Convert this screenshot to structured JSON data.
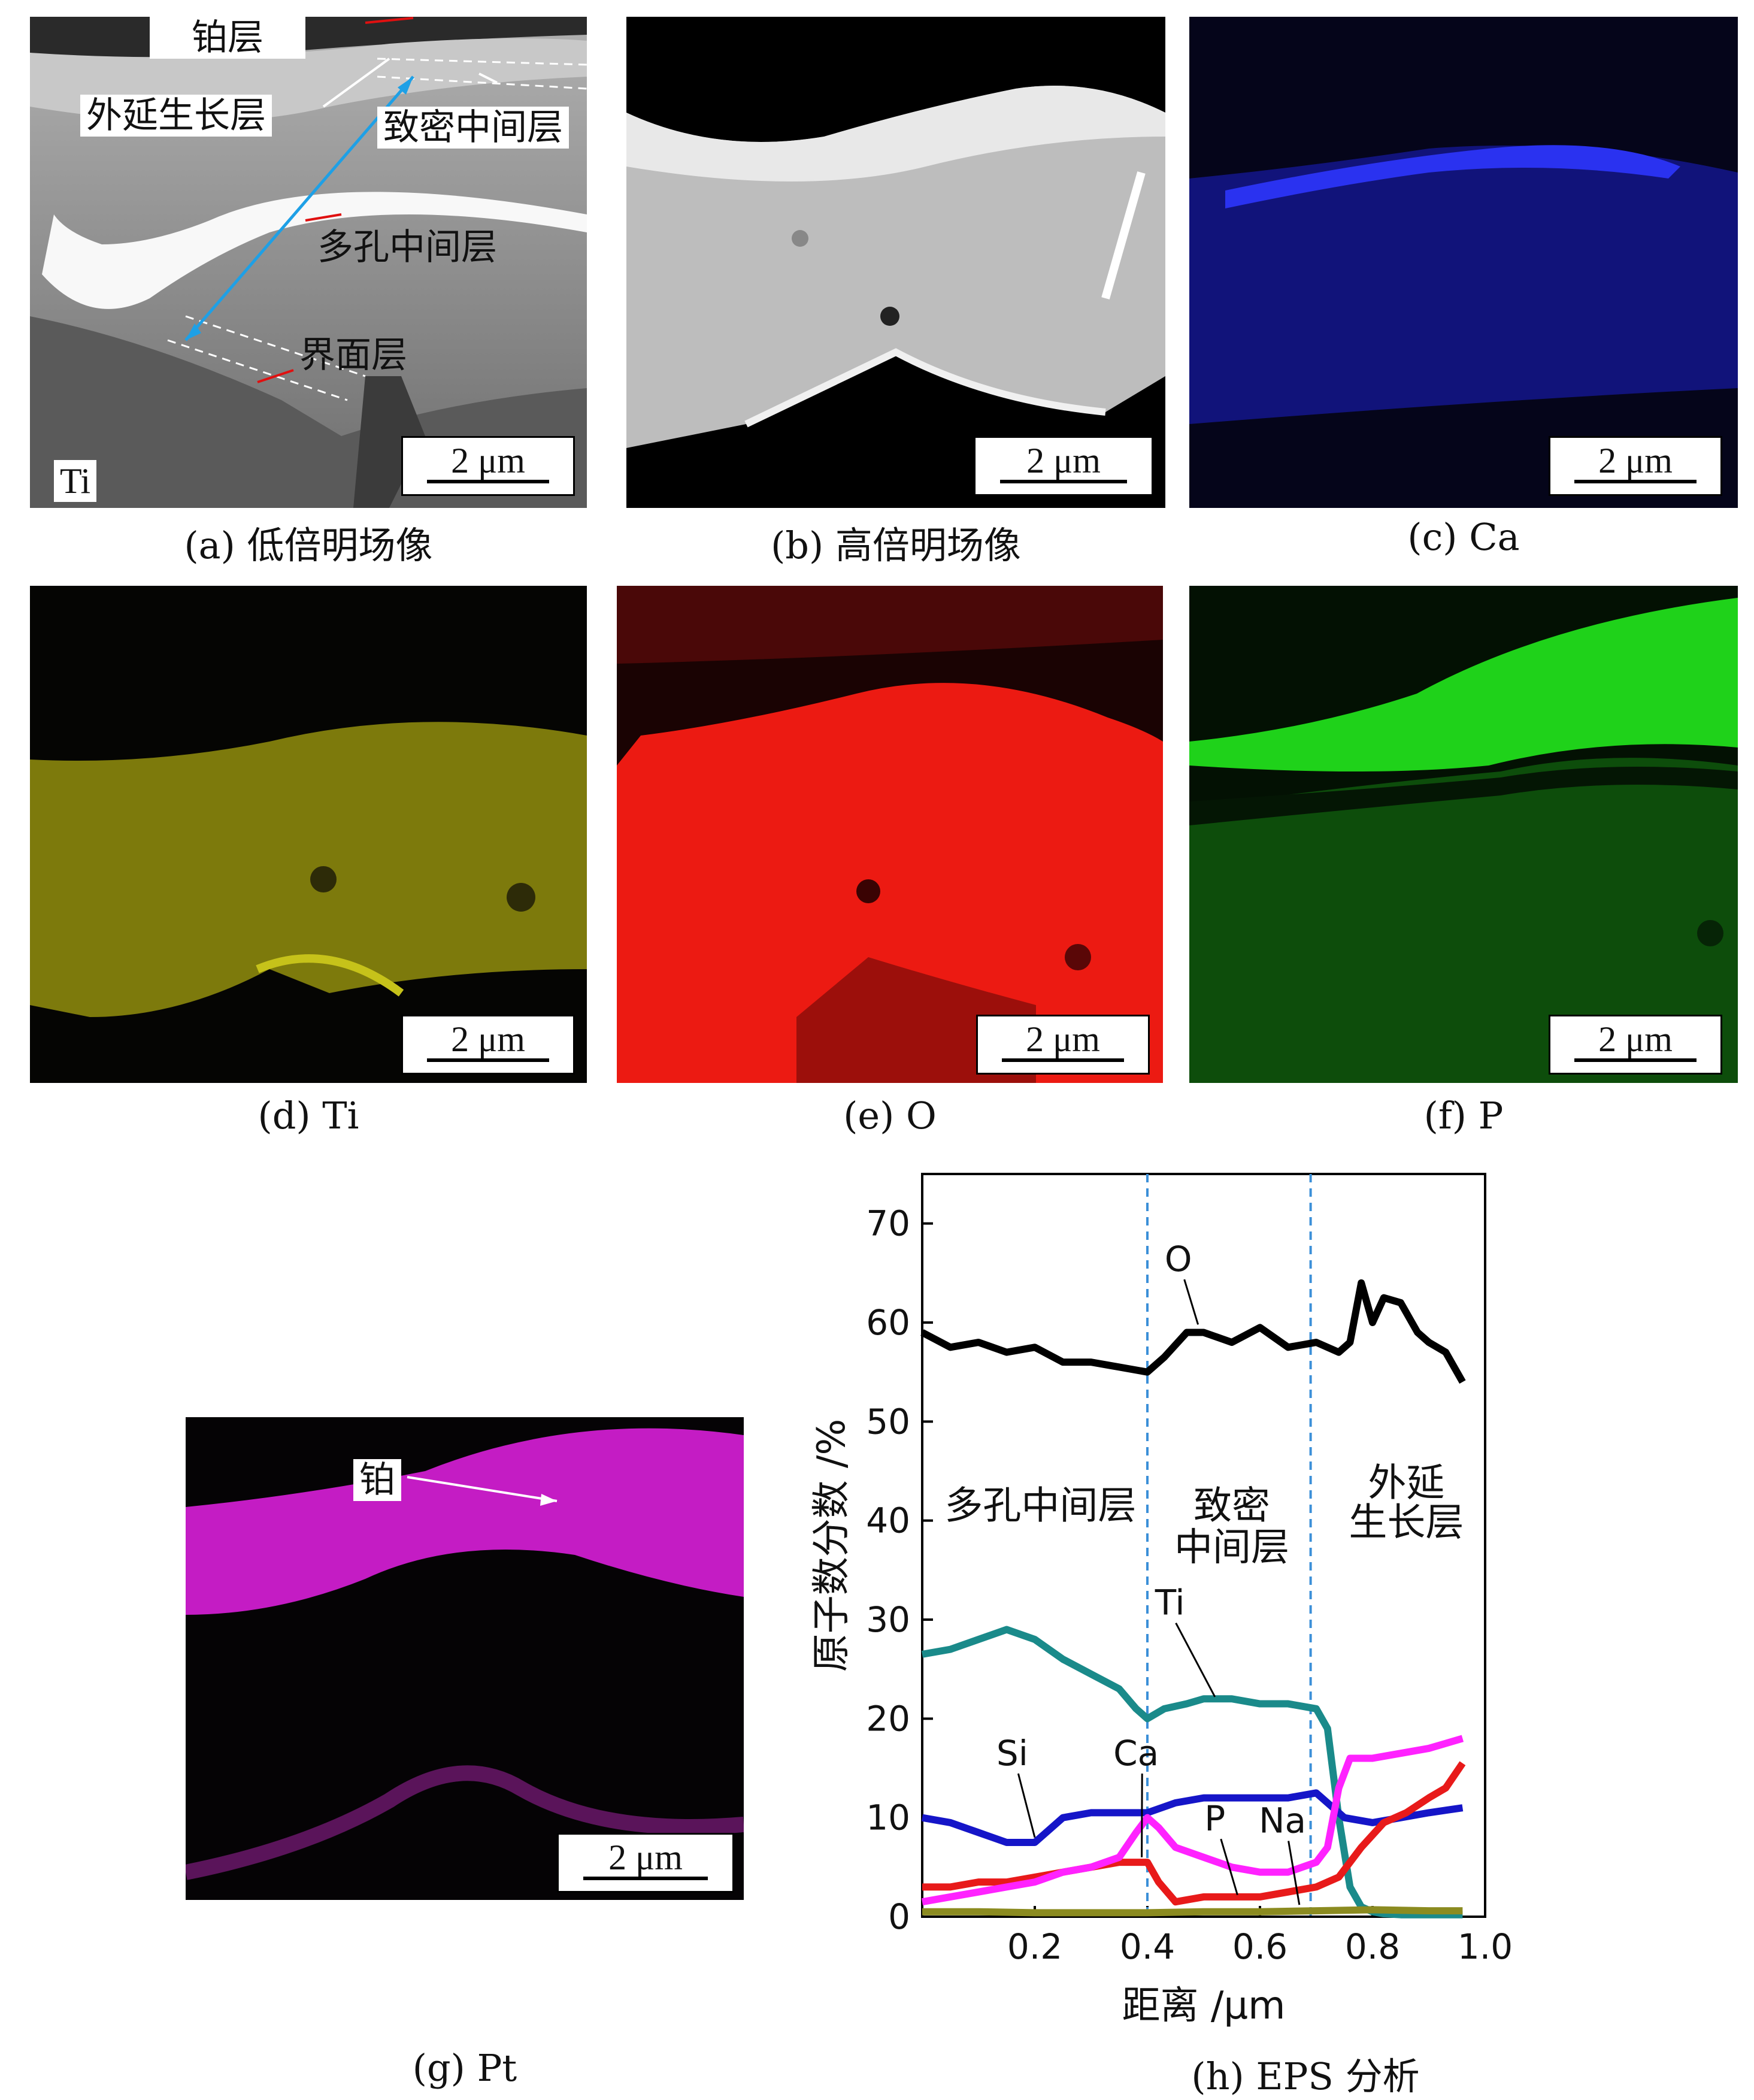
{
  "panels": {
    "a": {
      "caption": "(a) 低倍明场像",
      "scale_bar": "2 μm",
      "labels": {
        "pt_layer": "铂层",
        "epitaxial": "外延生长层",
        "dense": "致密中间层",
        "porous": "多孔中间层",
        "interface": "界面层",
        "ti": "Ti"
      }
    },
    "b": {
      "caption": "(b) 高倍明场像",
      "scale_bar": "2 μm"
    },
    "c": {
      "caption": "(c) Ca",
      "scale_bar": "2 μm",
      "color": "#1d2bd6"
    },
    "d": {
      "caption": "(d) Ti",
      "scale_bar": "2 μm",
      "color": "#b7b10e"
    },
    "e": {
      "caption": "(e) O",
      "scale_bar": "2 μm",
      "color": "#ff1b10"
    },
    "f": {
      "caption": "(f) P",
      "scale_bar": "2 μm",
      "color": "#22e01a"
    },
    "g": {
      "caption": "(g) Pt",
      "scale_bar": "2 μm",
      "color": "#d81fd8",
      "label": "铂"
    },
    "h": {
      "caption": "(h) EPS 分析"
    }
  },
  "chart_data": {
    "type": "line",
    "xlabel": "距离 /μm",
    "ylabel": "原子数分数 /%",
    "xlim": [
      0,
      1.0
    ],
    "ylim": [
      0,
      75
    ],
    "xticks": [
      "0.2",
      "0.4",
      "0.6",
      "0.8",
      "1.0"
    ],
    "yticks": [
      "0",
      "10",
      "20",
      "30",
      "40",
      "50",
      "60",
      "70"
    ],
    "region_boundaries": [
      0.4,
      0.69
    ],
    "region_labels": [
      "多孔中间层",
      "致密",
      "中间层",
      "外延",
      "生长层"
    ],
    "series": [
      {
        "name": "O",
        "color": "#000000",
        "x": [
          0,
          0.05,
          0.1,
          0.15,
          0.2,
          0.25,
          0.3,
          0.35,
          0.4,
          0.43,
          0.47,
          0.5,
          0.55,
          0.6,
          0.65,
          0.7,
          0.74,
          0.76,
          0.78,
          0.8,
          0.82,
          0.85,
          0.88,
          0.9,
          0.93,
          0.96
        ],
        "y": [
          59,
          57.5,
          58,
          57,
          57.5,
          56,
          56,
          55.5,
          55,
          56.5,
          59,
          59,
          58,
          59.5,
          57.5,
          58,
          57,
          58,
          64,
          60,
          62.5,
          62,
          59,
          58,
          57,
          54
        ]
      },
      {
        "name": "Ti",
        "color": "#1a8a8a",
        "x": [
          0,
          0.05,
          0.1,
          0.15,
          0.2,
          0.25,
          0.3,
          0.35,
          0.38,
          0.4,
          0.43,
          0.47,
          0.5,
          0.55,
          0.6,
          0.65,
          0.7,
          0.72,
          0.74,
          0.76,
          0.78,
          0.8,
          0.82,
          0.85,
          0.9,
          0.96
        ],
        "y": [
          26.5,
          27,
          28,
          29,
          28,
          26,
          24.5,
          23,
          21,
          20,
          21,
          21.5,
          22,
          22,
          21.5,
          21.5,
          21,
          19,
          10,
          3,
          1,
          0.5,
          0.3,
          0.2,
          0.2,
          0.2
        ]
      },
      {
        "name": "Si",
        "color": "#1515c8",
        "x": [
          0,
          0.05,
          0.1,
          0.15,
          0.2,
          0.25,
          0.3,
          0.35,
          0.4,
          0.45,
          0.5,
          0.55,
          0.6,
          0.65,
          0.7,
          0.75,
          0.8,
          0.85,
          0.9,
          0.96
        ],
        "y": [
          10,
          9.5,
          8.5,
          7.5,
          7.5,
          10,
          10.5,
          10.5,
          10.5,
          11.5,
          12,
          12,
          12,
          12,
          12.5,
          10,
          9.5,
          10,
          10.5,
          11
        ]
      },
      {
        "name": "Ca",
        "color": "#e81a1a",
        "x": [
          0,
          0.05,
          0.1,
          0.15,
          0.2,
          0.25,
          0.3,
          0.35,
          0.4,
          0.42,
          0.45,
          0.5,
          0.55,
          0.6,
          0.65,
          0.7,
          0.74,
          0.78,
          0.82,
          0.86,
          0.9,
          0.93,
          0.96
        ],
        "y": [
          3,
          3,
          3.5,
          3.5,
          4,
          4.5,
          5,
          5.5,
          5.5,
          3.5,
          1.5,
          2,
          2,
          2,
          2.5,
          3,
          4,
          7,
          9.5,
          10.5,
          12,
          13,
          15.5
        ]
      },
      {
        "name": "Na",
        "color": "#ff22ff",
        "x": [
          0,
          0.05,
          0.1,
          0.15,
          0.2,
          0.25,
          0.3,
          0.35,
          0.38,
          0.4,
          0.42,
          0.45,
          0.5,
          0.55,
          0.6,
          0.65,
          0.7,
          0.72,
          0.74,
          0.76,
          0.8,
          0.85,
          0.9,
          0.96
        ],
        "y": [
          1.5,
          2,
          2.5,
          3,
          3.5,
          4.5,
          5,
          6,
          8.5,
          10,
          9,
          7,
          6,
          5,
          4.5,
          4.5,
          5.5,
          7,
          13,
          16,
          16,
          16.5,
          17,
          18
        ]
      },
      {
        "name": "P",
        "color": "#8b8b20",
        "x": [
          0,
          0.1,
          0.2,
          0.3,
          0.4,
          0.5,
          0.6,
          0.7,
          0.8,
          0.9,
          0.96
        ],
        "y": [
          0.5,
          0.5,
          0.4,
          0.4,
          0.4,
          0.5,
          0.5,
          0.6,
          0.7,
          0.6,
          0.6
        ]
      }
    ],
    "point_labels": [
      "O",
      "Ti",
      "Si",
      "Ca",
      "P",
      "Na"
    ]
  }
}
